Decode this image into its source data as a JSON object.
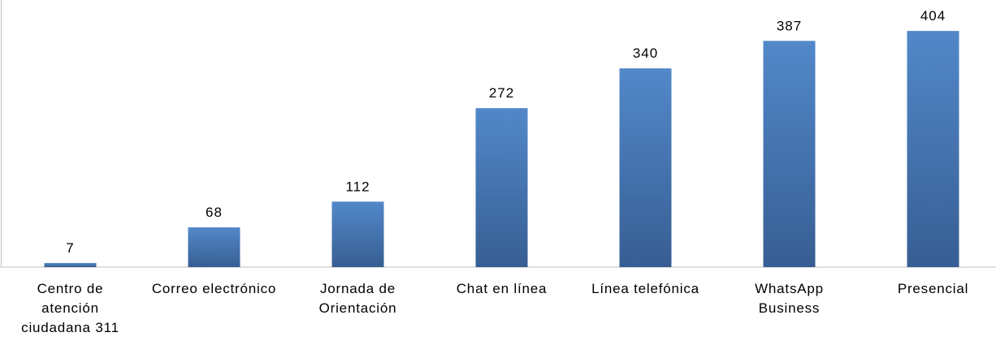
{
  "chart_data": {
    "type": "bar",
    "categories": [
      "Centro de atención ciudadana 311",
      "Correo electrónico",
      "Jornada de Orientación",
      "Chat en línea",
      "Línea telefónica",
      "WhatsApp Business",
      "Presencial"
    ],
    "values": [
      7,
      68,
      112,
      272,
      340,
      387,
      404
    ],
    "color": "#4a7bb8",
    "ylim": [
      0,
      450
    ],
    "grid": false
  }
}
